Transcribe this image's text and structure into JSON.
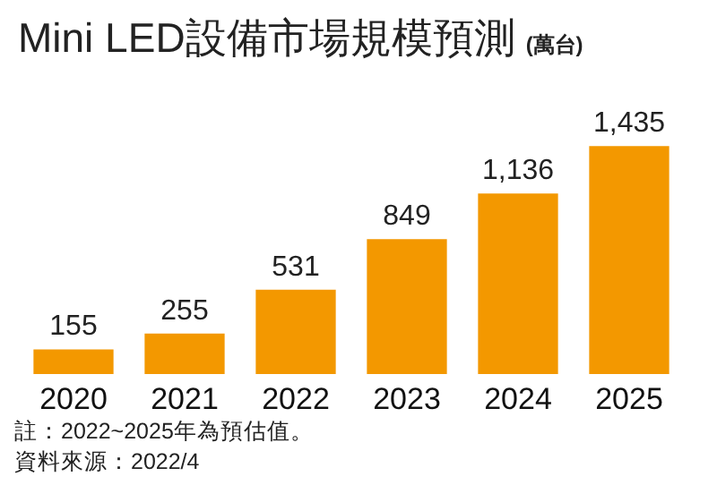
{
  "chart_data": {
    "type": "bar",
    "title": "Mini LED設備市場規模預測",
    "ylabel": "(萬台)",
    "categories": [
      "2020",
      "2021",
      "2022",
      "2023",
      "2024",
      "2025"
    ],
    "values": [
      155,
      255,
      531,
      849,
      1136,
      1435
    ],
    "value_labels": [
      "155",
      "255",
      "531",
      "849",
      "1,136",
      "1,435"
    ],
    "color": "#f39800",
    "annotations": [
      "註：2022~2025年為預估值。",
      "資料來源：2022/4"
    ]
  }
}
